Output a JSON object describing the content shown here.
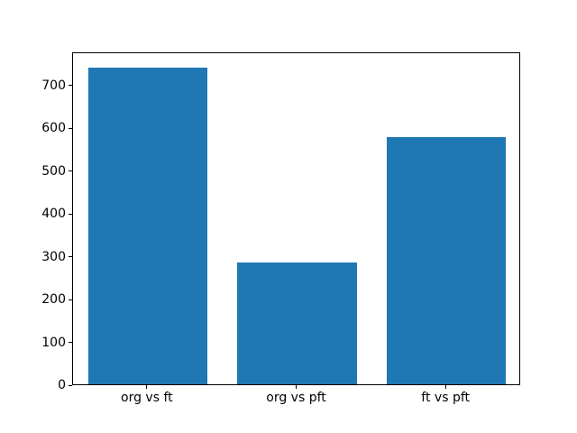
{
  "figure": {
    "background": "#ffffff"
  },
  "chart_data": {
    "type": "bar",
    "categories": [
      "org vs ft",
      "org vs pft",
      "ft vs pft"
    ],
    "values": [
      740,
      284,
      578
    ],
    "title": "",
    "xlabel": "",
    "ylabel": "",
    "ylim": [
      0,
      777
    ],
    "yticks": [
      0,
      100,
      200,
      300,
      400,
      500,
      600,
      700
    ],
    "bar_color": "#1f77b4",
    "bar_width_fraction": 0.8,
    "axis_color": "#000000",
    "tick_label_color": "#000000",
    "grid": false,
    "legend": false
  }
}
